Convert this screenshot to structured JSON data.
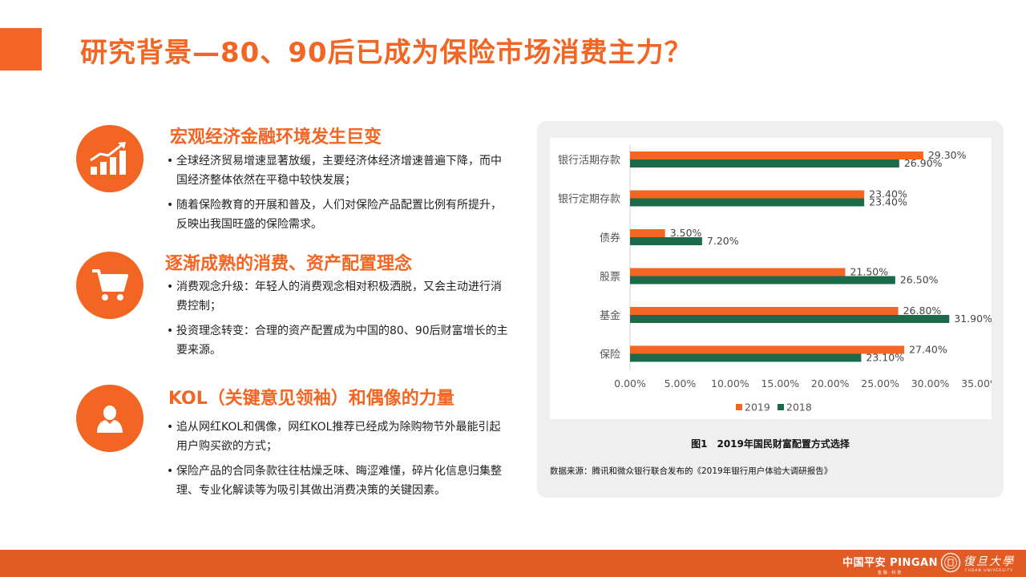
{
  "title": "研究背景—80、90后已成为保险市场消费主力？",
  "colors": {
    "accent": "#f26522",
    "series_2019": "#f26522",
    "series_2018": "#1b6b4a",
    "footer": "#e25a24"
  },
  "sections": [
    {
      "heading": "宏观经济金融环境发生巨变",
      "icon": "bar-growth-icon",
      "bullets": [
        "全球经济贸易增速显著放缓，主要经济体经济增速普遍下降，而中国经济整体依然在平稳中较快发展；",
        "随着保险教育的开展和普及，人们对保险产品配置比例有所提升，反映出我国旺盛的保险需求。"
      ]
    },
    {
      "heading": "逐渐成熟的消费、资产配置理念",
      "icon": "shopping-cart-icon",
      "bullets": [
        "消费观念升级：年轻人的消费观念相对积极洒脱，又会主动进行消费控制；",
        "投资理念转变：合理的资产配置成为中国的80、90后财富增长的主要来源。"
      ]
    },
    {
      "heading": "KOL（关键意见领袖）和偶像的力量",
      "icon": "person-icon",
      "bullets": [
        "追从网红KOL和偶像，网红KOL推荐已经成为除购物节外最能引起用户购买欲的方式；",
        "保险产品的合同条款往往枯燥乏味、晦涩难懂，碎片化信息归集整理、专业化解读等为吸引其做出消费决策的关键因素。"
      ]
    }
  ],
  "chart_data": {
    "type": "bar",
    "orientation": "horizontal",
    "categories": [
      "银行活期存款",
      "银行定期存款",
      "债券",
      "股票",
      "基金",
      "保险"
    ],
    "series": [
      {
        "name": "2019",
        "values": [
          29.3,
          23.4,
          3.5,
          21.5,
          26.8,
          27.4
        ],
        "labels": [
          "29.30%",
          "23.40%",
          "3.50%",
          "21.50%",
          "26.80%",
          "27.40%"
        ]
      },
      {
        "name": "2018",
        "values": [
          26.9,
          23.4,
          7.2,
          26.5,
          31.9,
          23.1
        ],
        "labels": [
          "26.90%",
          "23.40%",
          "7.20%",
          "26.50%",
          "31.90%",
          "23.10%"
        ]
      }
    ],
    "xlim": [
      0,
      35
    ],
    "ticks": [
      "0.00%",
      "5.00%",
      "10.00%",
      "15.00%",
      "20.00%",
      "25.00%",
      "30.00%",
      "35.00%"
    ],
    "legend_position": "bottom",
    "grid": false
  },
  "caption": "图1　2019年国民财富配置方式选择",
  "source": "数据来源：腾讯和微众银行联合发布的《2019年银行用户体验大调研报告》",
  "footer": {
    "pingan_logo": "中国平安 PINGAN",
    "pingan_sub": "金融·科技",
    "fudan_logo": "復旦大學",
    "fudan_sub": "FUDAN UNIVERSITY"
  }
}
